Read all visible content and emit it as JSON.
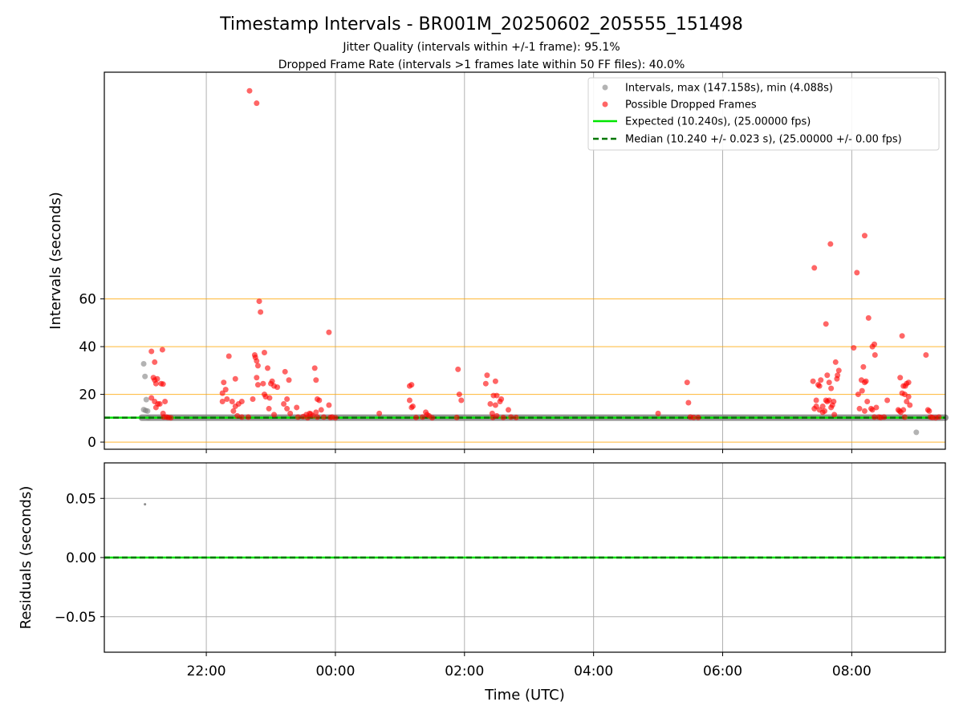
{
  "chart_data": {
    "type": "scatter",
    "title": "Timestamp Intervals - BR001M_20250602_205555_151498",
    "subtitle_lines": [
      "Jitter Quality (intervals within +/-1 frame): 95.1%",
      "Dropped Frame Rate (intervals >1 frames late within 50 FF files): 40.0%"
    ],
    "xlabel": "Time (UTC)",
    "x_ticks": [
      "22:00",
      "00:00",
      "02:00",
      "04:00",
      "06:00",
      "08:00"
    ],
    "x_tick_hours": [
      22,
      24,
      26,
      28,
      30,
      32
    ],
    "xlim_hours": [
      20.42,
      33.45
    ],
    "grid": true,
    "colors": {
      "intervals": "#808080",
      "dropped": "#ff0000",
      "expected": "#00e600",
      "median": "#007700",
      "threshold": "#ffa500",
      "grid": "#b0b0b0"
    },
    "top_panel": {
      "ylabel": "Intervals (seconds)",
      "ylim": [
        -3,
        155
      ],
      "y_ticks": [
        "0",
        "20",
        "40",
        "60"
      ],
      "y_tick_values": [
        0,
        20,
        40,
        60
      ],
      "threshold_lines": [
        0,
        20,
        40,
        60
      ],
      "expected_value": 10.24,
      "median_value": 10.24,
      "legend": {
        "position": "top-right",
        "entries": [
          "Intervals, max (147.158s), min (4.088s)",
          "Possible Dropped Frames",
          "Expected (10.240s), (25.00000 fps)",
          "Median (10.240 +/- 0.023 s), (25.00000 +/- 0.00 fps)"
        ]
      },
      "gray_points": [
        [
          21.03,
          32.8
        ],
        [
          21.05,
          27.5
        ],
        [
          21.07,
          17.8
        ],
        [
          21.03,
          13.6
        ],
        [
          21.06,
          13.2
        ],
        [
          21.09,
          13.0
        ],
        [
          21.1,
          10.2
        ],
        [
          33.0,
          4.1
        ]
      ],
      "dropped_points": [
        [
          21.15,
          38.0
        ],
        [
          21.2,
          33.5
        ],
        [
          21.18,
          27.0
        ],
        [
          21.2,
          26.0
        ],
        [
          21.24,
          26.5
        ],
        [
          21.22,
          24.5
        ],
        [
          21.3,
          24.5
        ],
        [
          21.33,
          24.3
        ],
        [
          21.32,
          38.7
        ],
        [
          21.15,
          18.5
        ],
        [
          21.2,
          17.0
        ],
        [
          21.25,
          16.0
        ],
        [
          21.28,
          16.0
        ],
        [
          21.22,
          14.5
        ],
        [
          21.36,
          17.0
        ],
        [
          21.33,
          12.0
        ],
        [
          21.34,
          10.5
        ],
        [
          21.38,
          10.5
        ],
        [
          21.41,
          10.3
        ],
        [
          21.45,
          10.2
        ],
        [
          22.25,
          20.5
        ],
        [
          22.27,
          25.0
        ],
        [
          22.3,
          22.0
        ],
        [
          22.32,
          18.0
        ],
        [
          22.35,
          36.0
        ],
        [
          22.25,
          17.0
        ],
        [
          22.4,
          17.0
        ],
        [
          22.45,
          26.5
        ],
        [
          22.5,
          16.0
        ],
        [
          22.55,
          17.0
        ],
        [
          22.45,
          15.0
        ],
        [
          22.42,
          13.0
        ],
        [
          22.48,
          11.0
        ],
        [
          22.55,
          10.5
        ],
        [
          22.65,
          10.5
        ],
        [
          22.67,
          147.2
        ],
        [
          22.78,
          142.0
        ],
        [
          22.75,
          36.5
        ],
        [
          22.76,
          35.5
        ],
        [
          22.78,
          34.0
        ],
        [
          22.8,
          32.0
        ],
        [
          22.78,
          27.0
        ],
        [
          22.8,
          24.0
        ],
        [
          22.72,
          18.0
        ],
        [
          22.82,
          59.0
        ],
        [
          22.84,
          54.5
        ],
        [
          22.9,
          37.5
        ],
        [
          22.88,
          24.5
        ],
        [
          22.9,
          20.0
        ],
        [
          22.92,
          19.0
        ],
        [
          22.95,
          31.0
        ],
        [
          22.98,
          18.5
        ],
        [
          23.0,
          24.5
        ],
        [
          23.02,
          25.5
        ],
        [
          23.05,
          23.5
        ],
        [
          23.1,
          23.0
        ],
        [
          22.97,
          14.0
        ],
        [
          23.05,
          11.5
        ],
        [
          23.22,
          29.5
        ],
        [
          23.28,
          26.0
        ],
        [
          23.25,
          18.0
        ],
        [
          23.2,
          16.0
        ],
        [
          23.25,
          14.0
        ],
        [
          23.3,
          12.0
        ],
        [
          23.4,
          14.5
        ],
        [
          23.42,
          10.5
        ],
        [
          23.5,
          10.7
        ],
        [
          23.55,
          11.5
        ],
        [
          23.6,
          12.0
        ],
        [
          23.65,
          11.0
        ],
        [
          23.7,
          12.5
        ],
        [
          23.72,
          10.5
        ],
        [
          23.62,
          11.8
        ],
        [
          23.57,
          10.2
        ],
        [
          23.68,
          31.0
        ],
        [
          23.7,
          26.0
        ],
        [
          23.72,
          18.0
        ],
        [
          23.75,
          17.5
        ],
        [
          23.78,
          13.5
        ],
        [
          23.82,
          10.5
        ],
        [
          23.9,
          15.5
        ],
        [
          23.92,
          10.3
        ],
        [
          23.95,
          10.5
        ],
        [
          23.9,
          46.0
        ],
        [
          24.0,
          10.2
        ],
        [
          24.68,
          12.0
        ],
        [
          25.15,
          23.5
        ],
        [
          25.18,
          24.0
        ],
        [
          25.15,
          17.5
        ],
        [
          25.2,
          15.0
        ],
        [
          25.18,
          14.5
        ],
        [
          25.25,
          10.3
        ],
        [
          25.35,
          10.5
        ],
        [
          25.4,
          12.5
        ],
        [
          25.42,
          11.5
        ],
        [
          25.45,
          11.0
        ],
        [
          25.5,
          10.2
        ],
        [
          25.9,
          30.5
        ],
        [
          25.92,
          20.0
        ],
        [
          25.95,
          17.5
        ],
        [
          25.88,
          10.3
        ],
        [
          26.35,
          28.0
        ],
        [
          26.33,
          24.5
        ],
        [
          26.48,
          25.5
        ],
        [
          26.45,
          19.5
        ],
        [
          26.5,
          19.5
        ],
        [
          26.4,
          16.0
        ],
        [
          26.48,
          15.5
        ],
        [
          26.55,
          17.0
        ],
        [
          26.57,
          18.0
        ],
        [
          26.43,
          12.0
        ],
        [
          26.44,
          10.3
        ],
        [
          26.5,
          11.0
        ],
        [
          26.6,
          10.3
        ],
        [
          26.68,
          13.5
        ],
        [
          26.72,
          10.5
        ],
        [
          26.8,
          10.3
        ],
        [
          29.0,
          12.0
        ],
        [
          29.45,
          25.0
        ],
        [
          29.47,
          16.5
        ],
        [
          29.5,
          10.5
        ],
        [
          29.55,
          10.3
        ],
        [
          29.62,
          10.3
        ],
        [
          31.42,
          73.0
        ],
        [
          31.4,
          25.5
        ],
        [
          31.42,
          14.0
        ],
        [
          31.45,
          17.5
        ],
        [
          31.45,
          15.0
        ],
        [
          31.48,
          24.0
        ],
        [
          31.5,
          13.5
        ],
        [
          31.52,
          26.0
        ],
        [
          31.5,
          23.5
        ],
        [
          31.55,
          15.0
        ],
        [
          31.55,
          12.5
        ],
        [
          31.6,
          17.5
        ],
        [
          31.58,
          13.0
        ],
        [
          31.62,
          17.0
        ],
        [
          31.62,
          28.0
        ],
        [
          31.6,
          49.5
        ],
        [
          31.67,
          83.0
        ],
        [
          31.65,
          17.5
        ],
        [
          31.68,
          14.5
        ],
        [
          31.7,
          15.5
        ],
        [
          31.72,
          17.0
        ],
        [
          31.65,
          25.0
        ],
        [
          31.68,
          22.5
        ],
        [
          31.73,
          11.5
        ],
        [
          31.75,
          33.5
        ],
        [
          31.77,
          26.5
        ],
        [
          31.78,
          28.0
        ],
        [
          31.8,
          30.0
        ],
        [
          32.03,
          39.5
        ],
        [
          32.08,
          71.0
        ],
        [
          32.1,
          20.0
        ],
        [
          32.12,
          14.0
        ],
        [
          32.15,
          26.0
        ],
        [
          32.18,
          31.5
        ],
        [
          32.2,
          25.0
        ],
        [
          32.16,
          21.5
        ],
        [
          32.2,
          86.5
        ],
        [
          32.22,
          25.5
        ],
        [
          32.24,
          17.0
        ],
        [
          32.2,
          13.0
        ],
        [
          32.26,
          52.0
        ],
        [
          32.32,
          40.0
        ],
        [
          32.35,
          41.0
        ],
        [
          32.36,
          36.5
        ],
        [
          32.3,
          14.0
        ],
        [
          32.32,
          13.5
        ],
        [
          32.35,
          10.5
        ],
        [
          32.38,
          14.5
        ],
        [
          32.42,
          10.5
        ],
        [
          32.45,
          10.3
        ],
        [
          32.5,
          10.5
        ],
        [
          32.55,
          17.5
        ],
        [
          32.75,
          27.0
        ],
        [
          32.78,
          44.5
        ],
        [
          32.8,
          23.5
        ],
        [
          32.82,
          20.0
        ],
        [
          32.83,
          23.5
        ],
        [
          32.85,
          24.5
        ],
        [
          32.88,
          25.0
        ],
        [
          32.78,
          20.5
        ],
        [
          32.72,
          13.5
        ],
        [
          32.74,
          13.0
        ],
        [
          32.76,
          12.5
        ],
        [
          32.8,
          13.5
        ],
        [
          32.82,
          10.5
        ],
        [
          32.88,
          19.0
        ],
        [
          32.9,
          15.5
        ],
        [
          32.85,
          17.0
        ],
        [
          33.15,
          36.5
        ],
        [
          33.18,
          13.5
        ],
        [
          33.2,
          13.0
        ],
        [
          33.22,
          10.5
        ],
        [
          33.25,
          10.3
        ],
        [
          33.3,
          10.2
        ],
        [
          33.35,
          10.5
        ]
      ]
    },
    "bottom_panel": {
      "ylabel": "Residuals (seconds)",
      "ylim": [
        -0.08,
        0.08
      ],
      "y_ticks": [
        "0.05",
        "0.00",
        "−0.05"
      ],
      "y_tick_values": [
        0.05,
        0.0,
        -0.05
      ],
      "residual_points": [
        [
          21.05,
          0.045
        ]
      ]
    }
  }
}
